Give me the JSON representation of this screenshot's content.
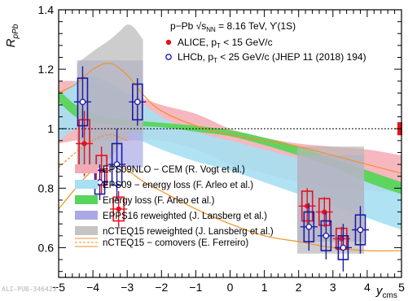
{
  "watermark": "ALI-PUB-346423",
  "chart_data": {
    "type": "scatter",
    "title": "",
    "xlabel": "y",
    "xlabel_sub": "cms",
    "ylabel": "R",
    "ylabel_sub": "pPb",
    "xlim": [
      -5,
      5
    ],
    "ylim": [
      0.5,
      1.4
    ],
    "xticks": [
      "−5",
      "−4",
      "−3",
      "−2",
      "−1",
      "0",
      "1",
      "2",
      "3",
      "4",
      "5"
    ],
    "yticks": [
      "0.6",
      "0.8",
      "1",
      "1.2",
      "1.4"
    ],
    "annotations": {
      "system": "p−Pb √s",
      "system_sub": "NN",
      "system_rest": " = 8.16 TeV, ϒ(1S)"
    },
    "data_series": [
      {
        "name": "ALICE, p",
        "name_sub": "T",
        "name_rest": " < 15 GeV/c",
        "color": "#e8101e",
        "marker": "filled-circle",
        "points": [
          {
            "x": -4.25,
            "y": 0.95,
            "stat": 0.11,
            "syst": 0.08,
            "xerr": 0.25
          },
          {
            "x": -3.75,
            "y": 0.86,
            "stat": 0.08,
            "syst": 0.05,
            "xerr": 0.25
          },
          {
            "x": -3.25,
            "y": 0.73,
            "stat": 0.06,
            "syst": 0.04,
            "xerr": 0.25
          },
          {
            "x": 2.25,
            "y": 0.74,
            "stat": 0.06,
            "syst": 0.05,
            "xerr": 0.25
          },
          {
            "x": 2.75,
            "y": 0.72,
            "stat": 0.05,
            "syst": 0.045,
            "xerr": 0.25
          },
          {
            "x": 3.25,
            "y": 0.63,
            "stat": 0.04,
            "syst": 0.035,
            "xerr": 0.25
          }
        ]
      },
      {
        "name": "LHCb, p",
        "name_sub": "T",
        "name_rest": " < 25 GeV/c (JHEP 11 (2018) 194)",
        "color": "#1a1aa8",
        "marker": "open-circle",
        "points": [
          {
            "x": -4.3,
            "y": 1.09,
            "stat": 0.12,
            "syst": 0.08,
            "xerr": 0.25
          },
          {
            "x": -3.8,
            "y": 0.82,
            "stat": 0.06,
            "syst": 0.04,
            "xerr": 0.25
          },
          {
            "x": -3.3,
            "y": 0.88,
            "stat": 0.12,
            "syst": 0.07,
            "xerr": 0.25
          },
          {
            "x": -2.7,
            "y": 1.09,
            "stat": 0.08,
            "syst": 0.06,
            "xerr": 0.25
          },
          {
            "x": 2.3,
            "y": 0.67,
            "stat": 0.08,
            "syst": 0.05,
            "xerr": 0.25
          },
          {
            "x": 2.8,
            "y": 0.64,
            "stat": 0.08,
            "syst": 0.05,
            "xerr": 0.25
          },
          {
            "x": 3.3,
            "y": 0.6,
            "stat": 0.08,
            "syst": 0.04,
            "xerr": 0.25
          },
          {
            "x": 3.8,
            "y": 0.66,
            "stat": 0.08,
            "syst": 0.05,
            "xerr": 0.25
          }
        ]
      }
    ],
    "global_uncertainty": {
      "x": 5,
      "y": 1.0,
      "half_height": 0.022,
      "color": "#e8101e"
    },
    "reference_line": 1.0,
    "models": [
      {
        "name": "EPS09NLO − CEM (R. Vogt et al.)",
        "style": "band",
        "color": "#f4aab4",
        "opacity": 0.85,
        "upper": [
          [
            -5,
            1.16
          ],
          [
            -4.5,
            1.16
          ],
          [
            -4,
            1.15
          ],
          [
            -3,
            1.12
          ],
          [
            -2,
            1.08
          ],
          [
            -1,
            1.05
          ],
          [
            0,
            1.0
          ],
          [
            1,
            0.97
          ],
          [
            2,
            0.95
          ],
          [
            3,
            0.94
          ],
          [
            4,
            0.93
          ],
          [
            5,
            0.91
          ]
        ],
        "lower": [
          [
            -5,
            0.95
          ],
          [
            -4.5,
            0.96
          ],
          [
            -4,
            0.96
          ],
          [
            -3,
            0.96
          ],
          [
            -2,
            0.96
          ],
          [
            -1,
            0.93
          ],
          [
            0,
            0.88
          ],
          [
            1,
            0.85
          ],
          [
            2,
            0.82
          ],
          [
            3,
            0.8
          ],
          [
            4,
            0.79
          ],
          [
            5,
            0.79
          ]
        ]
      },
      {
        "name": "EPS09 − energy loss (F. Arleo et al.)",
        "style": "band",
        "color": "#a6e0f2",
        "opacity": 0.9,
        "upper": [
          [
            -5,
            1.1
          ],
          [
            -4.5,
            1.16
          ],
          [
            -4,
            1.18
          ],
          [
            -3,
            1.12
          ],
          [
            -2,
            1.04
          ],
          [
            -1,
            0.99
          ],
          [
            0,
            0.96
          ],
          [
            1,
            0.93
          ],
          [
            2,
            0.9
          ],
          [
            3,
            0.87
          ],
          [
            4,
            0.84
          ],
          [
            5,
            0.82
          ]
        ],
        "lower": [
          [
            -5,
            0.96
          ],
          [
            -4.5,
            1.0
          ],
          [
            -4,
            1.02
          ],
          [
            -3,
            0.98
          ],
          [
            -2,
            0.93
          ],
          [
            -1,
            0.89
          ],
          [
            0,
            0.86
          ],
          [
            1,
            0.82
          ],
          [
            2,
            0.78
          ],
          [
            3,
            0.74
          ],
          [
            4,
            0.7
          ],
          [
            5,
            0.66
          ]
        ]
      },
      {
        "name": "Energy loss (F. Arleo et al.)",
        "style": "band",
        "color": "#5ad45a",
        "opacity": 0.95,
        "upper": [
          [
            -5,
            1.13
          ],
          [
            -4.5,
            1.08
          ],
          [
            -4,
            1.05
          ],
          [
            -3,
            1.03
          ],
          [
            -2,
            1.02
          ],
          [
            -1,
            1.01
          ],
          [
            0,
            0.995
          ],
          [
            1,
            0.97
          ],
          [
            2,
            0.94
          ],
          [
            3,
            0.9
          ],
          [
            4,
            0.86
          ],
          [
            5,
            0.82
          ]
        ],
        "lower": [
          [
            -5,
            1.09
          ],
          [
            -4.5,
            1.04
          ],
          [
            -4,
            1.02
          ],
          [
            -3,
            1.01
          ],
          [
            -2,
            1.005
          ],
          [
            -1,
            0.99
          ],
          [
            0,
            0.975
          ],
          [
            1,
            0.945
          ],
          [
            2,
            0.91
          ],
          [
            3,
            0.87
          ],
          [
            4,
            0.82
          ],
          [
            5,
            0.78
          ]
        ]
      },
      {
        "name": "EPPS16 reweighted (J. Lansberg et al.)",
        "style": "box",
        "color": "#a9a9e6",
        "opacity": 0.7,
        "boxes": [
          {
            "x0": -4.46,
            "x1": -2.54,
            "y0": 0.87,
            "y1": 1.23
          },
          {
            "x0": 1.96,
            "x1": 3.91,
            "y0": 0.62,
            "y1": 0.91
          }
        ]
      },
      {
        "name": "nCTEQ15 reweighted (J. Lansberg et al.)",
        "style": "band",
        "color": "#b8b8b8",
        "opacity": 0.7,
        "upper": [
          [
            -4.46,
            1.22
          ],
          [
            -4.0,
            1.26
          ],
          [
            -3.5,
            1.3
          ],
          [
            -3.2,
            1.33
          ],
          [
            -3.0,
            1.35
          ],
          [
            -2.8,
            1.34
          ],
          [
            -2.54,
            1.3
          ]
        ],
        "lower": [
          [
            -4.46,
            0.86
          ],
          [
            -4.0,
            0.87
          ],
          [
            -3.5,
            0.9
          ],
          [
            -3.2,
            0.95
          ],
          [
            -3.0,
            0.98
          ],
          [
            -2.8,
            0.99
          ],
          [
            -2.54,
            0.98
          ]
        ],
        "boxes": [
          {
            "x0": 1.96,
            "x1": 3.91,
            "y0": 0.58,
            "y1": 0.94
          }
        ]
      },
      {
        "name": "nCTEQ15 − comovers (E. Ferreiro)",
        "style": "lines",
        "color": "#f0922a",
        "curves": [
          [
            [
              -5,
              1.12
            ],
            [
              -4.5,
              1.15
            ],
            [
              -4,
              1.2
            ],
            [
              -3.5,
              1.22
            ],
            [
              -3,
              1.18
            ],
            [
              -2.5,
              1.11
            ],
            [
              -2,
              1.06
            ],
            [
              -1,
              1.01
            ],
            [
              0,
              0.98
            ],
            [
              1,
              0.96
            ],
            [
              2,
              0.94
            ],
            [
              3,
              0.91
            ],
            [
              4,
              0.88
            ],
            [
              5,
              0.85
            ]
          ],
          [
            [
              -5,
              0.73
            ],
            [
              -4.5,
              0.8
            ],
            [
              -4,
              0.86
            ],
            [
              -3.5,
              0.88
            ],
            [
              -3,
              0.86
            ],
            [
              -2.5,
              0.82
            ],
            [
              -2,
              0.79
            ],
            [
              -1,
              0.73
            ],
            [
              0,
              0.68
            ],
            [
              1,
              0.64
            ],
            [
              2,
              0.62
            ],
            [
              3,
              0.6
            ],
            [
              4,
              0.59
            ],
            [
              5,
              0.59
            ]
          ],
          [
            [
              -5,
              0.87
            ],
            [
              -4.5,
              0.92
            ],
            [
              -4,
              0.96
            ],
            [
              -3.5,
              0.98
            ],
            [
              -3,
              0.96
            ]
          ]
        ]
      }
    ],
    "legend_position": "bottom-left"
  }
}
